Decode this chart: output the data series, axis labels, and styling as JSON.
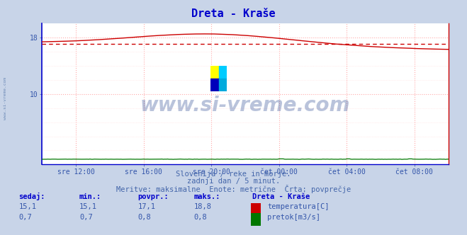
{
  "title": "Dreta - Kraše",
  "title_color": "#0000cc",
  "bg_color": "#c8d4e8",
  "plot_bg_color": "#ffffff",
  "grid_color_dot": "#ffaaaa",
  "grid_color_solid": "#ffbbbb",
  "left_spine_color": "#0000cc",
  "right_spine_color": "#cc0000",
  "xlabel_ticks": [
    "sre 12:00",
    "sre 16:00",
    "sre 20:00",
    "čet 00:00",
    "čet 04:00",
    "čet 08:00"
  ],
  "tick_label_color": "#3355aa",
  "ylim": [
    0,
    20
  ],
  "xlim": [
    0,
    288
  ],
  "temp_color": "#cc0000",
  "flow_color": "#007700",
  "avg_line_color": "#cc0000",
  "avg_line_value": 17.1,
  "subtitle1": "Slovenija / reke in morje.",
  "subtitle2": "zadnji dan / 5 minut.",
  "subtitle3": "Meritve: maksimalne  Enote: metrične  Črta: povprečje",
  "subtitle_color": "#4466aa",
  "watermark": "www.si-vreme.com",
  "watermark_color": "#1a3a8a",
  "label_color": "#0000cc",
  "stat_color": "#3355aa",
  "yticks_shown": [
    10,
    18
  ],
  "n_points": 289,
  "tick_positions": [
    24,
    72,
    120,
    168,
    216,
    264
  ]
}
